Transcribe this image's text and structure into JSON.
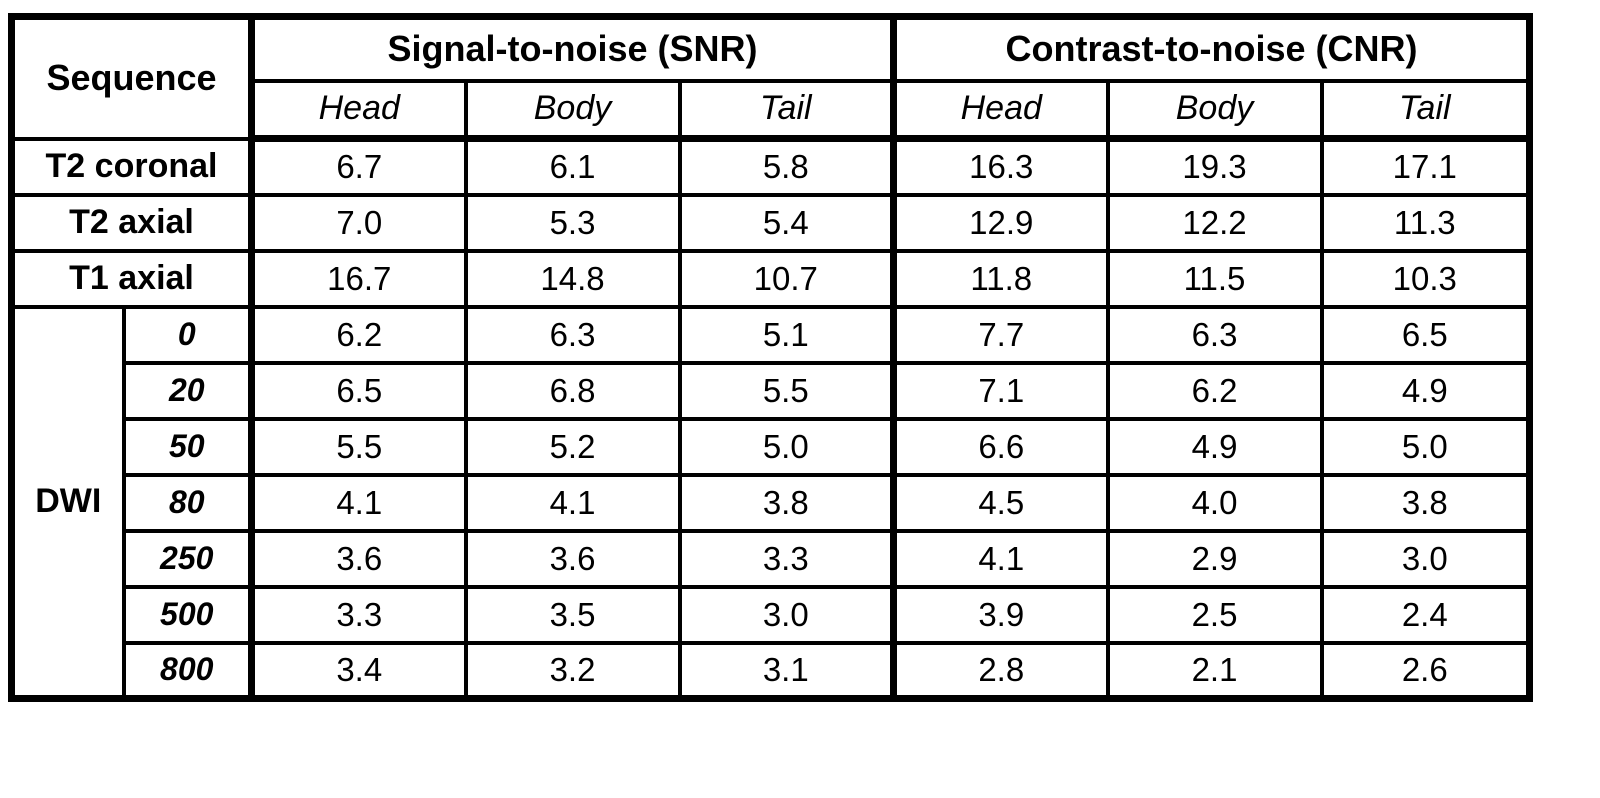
{
  "table": {
    "corner_header": "Sequence",
    "col_groups": [
      {
        "label": "Signal-to-noise (SNR)",
        "subcols": [
          "Head",
          "Body",
          "Tail"
        ]
      },
      {
        "label": "Contrast-to-noise (CNR)",
        "subcols": [
          "Head",
          "Body",
          "Tail"
        ]
      }
    ],
    "rows": [
      {
        "label": "T2 coronal",
        "snr": [
          "6.7",
          "6.1",
          "5.8"
        ],
        "cnr": [
          "16.3",
          "19.3",
          "17.1"
        ]
      },
      {
        "label": "T2 axial",
        "snr": [
          "7.0",
          "5.3",
          "5.4"
        ],
        "cnr": [
          "12.9",
          "12.2",
          "11.3"
        ]
      },
      {
        "label": "T1 axial",
        "snr": [
          "16.7",
          "14.8",
          "10.7"
        ],
        "cnr": [
          "11.8",
          "11.5",
          "10.3"
        ]
      }
    ],
    "dwi_group": {
      "label": "DWI",
      "rows": [
        {
          "b_value": "0",
          "snr": [
            "6.2",
            "6.3",
            "5.1"
          ],
          "cnr": [
            "7.7",
            "6.3",
            "6.5"
          ]
        },
        {
          "b_value": "20",
          "snr": [
            "6.5",
            "6.8",
            "5.5"
          ],
          "cnr": [
            "7.1",
            "6.2",
            "4.9"
          ]
        },
        {
          "b_value": "50",
          "snr": [
            "5.5",
            "5.2",
            "5.0"
          ],
          "cnr": [
            "6.6",
            "4.9",
            "5.0"
          ]
        },
        {
          "b_value": "80",
          "snr": [
            "4.1",
            "4.1",
            "3.8"
          ],
          "cnr": [
            "4.5",
            "4.0",
            "3.8"
          ]
        },
        {
          "b_value": "250",
          "snr": [
            "3.6",
            "3.6",
            "3.3"
          ],
          "cnr": [
            "4.1",
            "2.9",
            "3.0"
          ]
        },
        {
          "b_value": "500",
          "snr": [
            "3.3",
            "3.5",
            "3.0"
          ],
          "cnr": [
            "3.9",
            "2.5",
            "2.4"
          ]
        },
        {
          "b_value": "800",
          "snr": [
            "3.4",
            "3.2",
            "3.1"
          ],
          "cnr": [
            "2.8",
            "2.1",
            "2.6"
          ]
        }
      ]
    },
    "border_color": "#000000",
    "background_color": "#ffffff"
  }
}
